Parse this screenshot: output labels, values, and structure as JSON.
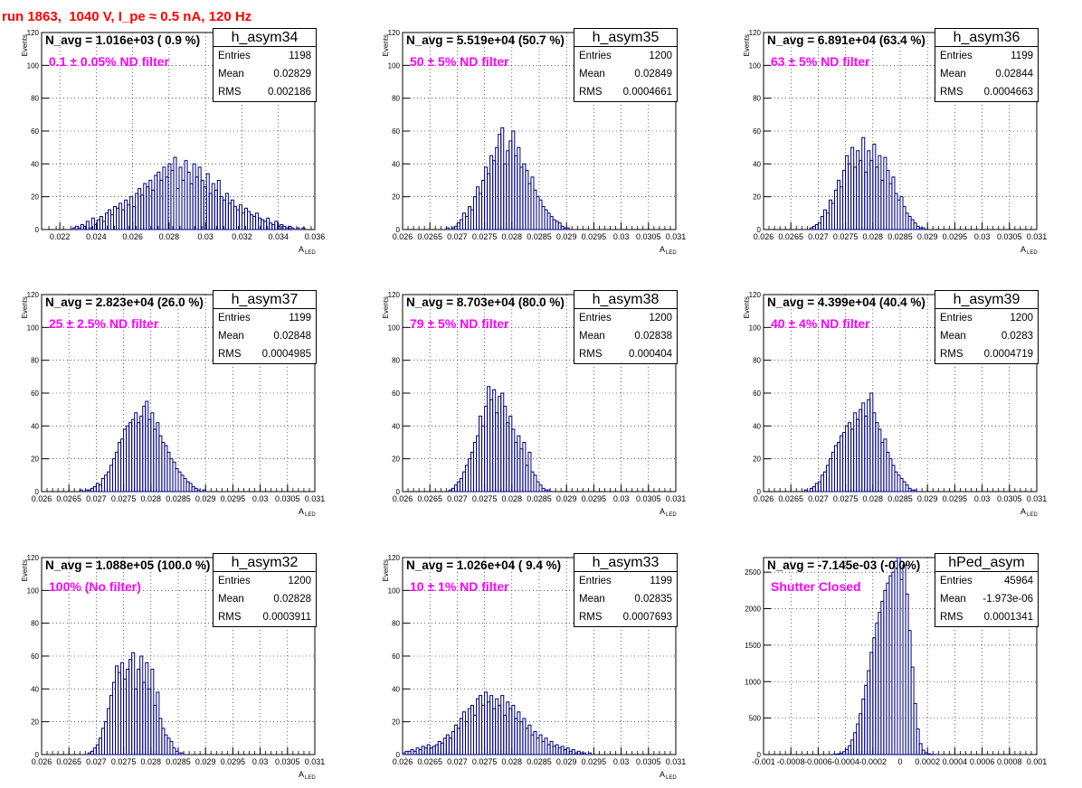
{
  "page_title": "run 1863,  1040 V, I_pe ≈ 0.5 nA, 120 Hz",
  "chart_data": [
    {
      "type": "bar",
      "hist_name": "h_asym34",
      "annotation": "N_avg = 1.016e+03 ( 0.9 %)",
      "filter_label": "0.1 ± 0.05% ND filter",
      "stats": {
        "entries": "1198",
        "mean": "0.02829",
        "rms": "0.002186"
      },
      "xlabel": "A",
      "xlabel_sub": "LED",
      "ylabel": "Events",
      "xlim": [
        0.021,
        0.036
      ],
      "ylim": [
        0,
        120
      ],
      "x_ticks": [
        "0.022",
        "0.024",
        "0.026",
        "0.028",
        "0.03",
        "0.032",
        "0.034",
        "0.036"
      ],
      "y_ticks": [
        "20",
        "40",
        "60",
        "80",
        "100",
        "120"
      ],
      "bin_start": 0.0215,
      "bin_width": 0.00015,
      "values": [
        0,
        0,
        0,
        0,
        0,
        0,
        0,
        0,
        1,
        2,
        1,
        3,
        2,
        5,
        1,
        7,
        3,
        6,
        8,
        5,
        10,
        12,
        9,
        14,
        13,
        16,
        12,
        18,
        15,
        20,
        14,
        22,
        25,
        21,
        28,
        26,
        30,
        24,
        33,
        35,
        30,
        38,
        32,
        40,
        36,
        44,
        25,
        38,
        30,
        42,
        35,
        28,
        40,
        32,
        38,
        30,
        26,
        34,
        22,
        28,
        24,
        30,
        20,
        18,
        22,
        16,
        18,
        14,
        12,
        15,
        10,
        13,
        11,
        9,
        8,
        10,
        7,
        6,
        5,
        7,
        4,
        3,
        5,
        2,
        3,
        2,
        1,
        2,
        1,
        0,
        1,
        0,
        1,
        0,
        0,
        0,
        0,
        0,
        0,
        0
      ]
    },
    {
      "type": "bar",
      "hist_name": "h_asym35",
      "annotation": "N_avg = 5.519e+04 (50.7 %)",
      "filter_label": "50 ± 5% ND filter",
      "stats": {
        "entries": "1200",
        "mean": "0.02849",
        "rms": "0.0004661"
      },
      "xlabel": "A",
      "xlabel_sub": "LED",
      "ylabel": "Events",
      "xlim": [
        0.026,
        0.031
      ],
      "ylim": [
        0,
        120
      ],
      "x_ticks": [
        "0.026",
        "0.0265",
        "0.027",
        "0.0275",
        "0.028",
        "0.0285",
        "0.029",
        "0.0295",
        "0.03",
        "0.0305",
        "0.031"
      ],
      "y_ticks": [
        "20",
        "40",
        "60",
        "80",
        "100",
        "120"
      ],
      "bin_start": 0.026,
      "bin_width": 5e-05,
      "values": [
        0,
        0,
        0,
        0,
        0,
        0,
        0,
        0,
        0,
        0,
        0,
        0,
        0,
        0,
        0,
        0,
        1,
        0,
        1,
        2,
        4,
        6,
        10,
        8,
        14,
        12,
        20,
        26,
        22,
        30,
        38,
        34,
        45,
        42,
        50,
        58,
        62,
        40,
        48,
        54,
        60,
        45,
        50,
        38,
        40,
        36,
        28,
        32,
        24,
        20,
        18,
        14,
        12,
        10,
        8,
        6,
        5,
        4,
        2,
        1,
        1,
        0,
        0,
        0,
        0,
        0,
        0,
        0,
        0,
        0,
        0,
        0,
        0,
        0,
        0,
        0,
        0,
        0,
        0,
        0,
        0,
        0,
        0,
        0,
        0,
        0,
        0,
        0,
        0,
        0,
        0,
        0,
        0,
        0,
        0,
        0,
        0,
        0,
        0,
        0
      ]
    },
    {
      "type": "bar",
      "hist_name": "h_asym36",
      "annotation": "N_avg = 6.891e+04 (63.4 %)",
      "filter_label": "63 ± 5% ND filter",
      "stats": {
        "entries": "1199",
        "mean": "0.02844",
        "rms": "0.0004663"
      },
      "xlabel": "A",
      "xlabel_sub": "LED",
      "ylabel": "Events",
      "xlim": [
        0.026,
        0.031
      ],
      "ylim": [
        0,
        120
      ],
      "x_ticks": [
        "0.026",
        "0.0265",
        "0.027",
        "0.0275",
        "0.028",
        "0.0285",
        "0.029",
        "0.0295",
        "0.03",
        "0.0305",
        "0.031"
      ],
      "y_ticks": [
        "20",
        "40",
        "60",
        "80",
        "100",
        "120"
      ],
      "bin_start": 0.026,
      "bin_width": 5e-05,
      "values": [
        0,
        0,
        0,
        0,
        0,
        0,
        0,
        0,
        0,
        0,
        0,
        0,
        0,
        0,
        0,
        0,
        0,
        1,
        2,
        3,
        4,
        8,
        12,
        10,
        18,
        16,
        24,
        30,
        26,
        36,
        45,
        40,
        50,
        38,
        48,
        42,
        56,
        35,
        48,
        42,
        52,
        38,
        45,
        30,
        44,
        36,
        28,
        32,
        22,
        18,
        20,
        14,
        10,
        8,
        6,
        4,
        2,
        1,
        1,
        0,
        0,
        0,
        0,
        0,
        0,
        0,
        0,
        0,
        0,
        0,
        0,
        0,
        0,
        0,
        0,
        0,
        0,
        0,
        0,
        0,
        0,
        0,
        0,
        0,
        0,
        0,
        0,
        0,
        0,
        0,
        0,
        0,
        0,
        0,
        0,
        0,
        0,
        0,
        0,
        0
      ]
    },
    {
      "type": "bar",
      "hist_name": "h_asym37",
      "annotation": "N_avg = 2.823e+04 (26.0 %)",
      "filter_label": "25 ± 2.5% ND filter",
      "stats": {
        "entries": "1199",
        "mean": "0.02848",
        "rms": "0.0004985"
      },
      "xlabel": "A",
      "xlabel_sub": "LED",
      "ylabel": "Events",
      "xlim": [
        0.026,
        0.031
      ],
      "ylim": [
        0,
        120
      ],
      "x_ticks": [
        "0.026",
        "0.0265",
        "0.027",
        "0.0275",
        "0.028",
        "0.0285",
        "0.029",
        "0.0295",
        "0.03",
        "0.0305",
        "0.031"
      ],
      "y_ticks": [
        "20",
        "40",
        "60",
        "80",
        "100",
        "120"
      ],
      "bin_start": 0.026,
      "bin_width": 5e-05,
      "values": [
        0,
        0,
        0,
        0,
        0,
        0,
        0,
        0,
        0,
        0,
        0,
        0,
        0,
        0,
        1,
        0,
        1,
        1,
        2,
        3,
        5,
        4,
        8,
        10,
        12,
        16,
        20,
        24,
        30,
        32,
        38,
        40,
        42,
        44,
        48,
        42,
        46,
        52,
        55,
        44,
        48,
        38,
        42,
        34,
        30,
        28,
        24,
        20,
        18,
        14,
        12,
        10,
        8,
        6,
        5,
        3,
        2,
        1,
        0,
        1,
        0,
        0,
        0,
        0,
        0,
        0,
        0,
        0,
        0,
        0,
        0,
        0,
        0,
        0,
        0,
        0,
        0,
        0,
        0,
        0,
        0,
        0,
        0,
        0,
        0,
        0,
        0,
        0,
        0,
        0,
        0,
        0,
        0,
        0,
        0,
        0,
        0,
        0,
        0,
        0
      ]
    },
    {
      "type": "bar",
      "hist_name": "h_asym38",
      "annotation": "N_avg = 8.703e+04 (80.0 %)",
      "filter_label": "79 ± 5% ND filter",
      "stats": {
        "entries": "1200",
        "mean": "0.02838",
        "rms": "0.000404"
      },
      "xlabel": "A",
      "xlabel_sub": "LED",
      "ylabel": "Events",
      "xlim": [
        0.026,
        0.031
      ],
      "ylim": [
        0,
        120
      ],
      "x_ticks": [
        "0.026",
        "0.0265",
        "0.027",
        "0.0275",
        "0.028",
        "0.0285",
        "0.029",
        "0.0295",
        "0.03",
        "0.0305",
        "0.031"
      ],
      "y_ticks": [
        "20",
        "40",
        "60",
        "80",
        "100",
        "120"
      ],
      "bin_start": 0.026,
      "bin_width": 5e-05,
      "values": [
        0,
        0,
        0,
        0,
        0,
        0,
        0,
        0,
        0,
        0,
        0,
        0,
        0,
        0,
        0,
        0,
        0,
        1,
        2,
        4,
        6,
        8,
        12,
        16,
        20,
        24,
        30,
        34,
        46,
        40,
        52,
        64,
        56,
        62,
        48,
        58,
        60,
        52,
        42,
        46,
        38,
        30,
        34,
        26,
        30,
        16,
        24,
        12,
        10,
        6,
        4,
        2,
        1,
        1,
        0,
        0,
        0,
        0,
        0,
        0,
        0,
        0,
        0,
        0,
        0,
        0,
        0,
        0,
        0,
        0,
        0,
        0,
        0,
        0,
        0,
        0,
        0,
        0,
        0,
        0,
        0,
        0,
        0,
        0,
        0,
        0,
        0,
        0,
        0,
        0,
        0,
        0,
        0,
        0,
        0,
        0,
        0,
        0,
        0,
        0
      ]
    },
    {
      "type": "bar",
      "hist_name": "h_asym39",
      "annotation": "N_avg = 4.399e+04 (40.4 %)",
      "filter_label": "40 ± 4% ND filter",
      "stats": {
        "entries": "1200",
        "mean": "0.0283",
        "rms": "0.0004719"
      },
      "xlabel": "A",
      "xlabel_sub": "LED",
      "ylabel": "Events",
      "xlim": [
        0.026,
        0.031
      ],
      "ylim": [
        0,
        120
      ],
      "x_ticks": [
        "0.026",
        "0.0265",
        "0.027",
        "0.0275",
        "0.028",
        "0.0285",
        "0.029",
        "0.0295",
        "0.03",
        "0.0305",
        "0.031"
      ],
      "y_ticks": [
        "20",
        "40",
        "60",
        "80",
        "100",
        "120"
      ],
      "bin_start": 0.026,
      "bin_width": 5e-05,
      "values": [
        0,
        0,
        0,
        0,
        0,
        0,
        0,
        0,
        0,
        0,
        0,
        0,
        0,
        0,
        0,
        1,
        0,
        2,
        3,
        5,
        6,
        10,
        12,
        16,
        20,
        24,
        28,
        30,
        34,
        36,
        40,
        42,
        38,
        48,
        44,
        50,
        54,
        46,
        56,
        60,
        48,
        42,
        38,
        30,
        32,
        24,
        20,
        16,
        12,
        10,
        8,
        6,
        4,
        2,
        1,
        1,
        0,
        0,
        0,
        0,
        0,
        0,
        0,
        0,
        0,
        0,
        0,
        0,
        0,
        0,
        0,
        0,
        0,
        0,
        0,
        0,
        0,
        0,
        0,
        0,
        0,
        0,
        0,
        0,
        0,
        0,
        0,
        0,
        0,
        0,
        0,
        0,
        0,
        0,
        0,
        0,
        0,
        0,
        0,
        0
      ]
    },
    {
      "type": "bar",
      "hist_name": "h_asym32",
      "annotation": "N_avg = 1.088e+05 (100.0 %)",
      "filter_label": "100% (No filter)",
      "stats": {
        "entries": "1200",
        "mean": "0.02828",
        "rms": "0.0003911"
      },
      "xlabel": "A",
      "xlabel_sub": "LED",
      "ylabel": "Events",
      "xlim": [
        0.026,
        0.031
      ],
      "ylim": [
        0,
        120
      ],
      "x_ticks": [
        "0.026",
        "0.0265",
        "0.027",
        "0.0275",
        "0.028",
        "0.0285",
        "0.029",
        "0.0295",
        "0.03",
        "0.0305",
        "0.031"
      ],
      "y_ticks": [
        "20",
        "40",
        "60",
        "80",
        "100",
        "120"
      ],
      "bin_start": 0.026,
      "bin_width": 5e-05,
      "values": [
        0,
        0,
        0,
        0,
        0,
        0,
        0,
        0,
        0,
        0,
        0,
        0,
        0,
        0,
        0,
        0,
        0,
        1,
        2,
        4,
        6,
        10,
        16,
        20,
        28,
        36,
        44,
        54,
        50,
        56,
        46,
        52,
        58,
        62,
        40,
        52,
        60,
        44,
        56,
        40,
        52,
        30,
        38,
        22,
        16,
        12,
        10,
        8,
        4,
        2,
        1,
        1,
        0,
        0,
        0,
        0,
        0,
        0,
        0,
        0,
        0,
        0,
        0,
        0,
        0,
        0,
        0,
        0,
        0,
        0,
        0,
        0,
        0,
        0,
        0,
        0,
        0,
        0,
        0,
        0,
        0,
        0,
        0,
        0,
        0,
        0,
        0,
        0,
        0,
        0,
        0,
        0,
        0,
        0,
        0,
        0,
        0,
        0,
        0,
        0
      ]
    },
    {
      "type": "bar",
      "hist_name": "h_asym33",
      "annotation": "N_avg = 1.026e+04 ( 9.4 %)",
      "filter_label": "10 ± 1% ND filter",
      "stats": {
        "entries": "1199",
        "mean": "0.02835",
        "rms": "0.0007693"
      },
      "xlabel": "A",
      "xlabel_sub": "LED",
      "ylabel": "Events",
      "xlim": [
        0.026,
        0.031
      ],
      "ylim": [
        0,
        120
      ],
      "x_ticks": [
        "0.026",
        "0.0265",
        "0.027",
        "0.0275",
        "0.028",
        "0.0285",
        "0.029",
        "0.0295",
        "0.03",
        "0.0305",
        "0.031"
      ],
      "y_ticks": [
        "20",
        "40",
        "60",
        "80",
        "100",
        "120"
      ],
      "bin_start": 0.026,
      "bin_width": 5e-05,
      "values": [
        1,
        2,
        2,
        3,
        2,
        4,
        3,
        5,
        4,
        6,
        4,
        5,
        6,
        8,
        7,
        10,
        12,
        10,
        14,
        18,
        16,
        22,
        26,
        20,
        28,
        30,
        24,
        34,
        36,
        30,
        38,
        32,
        36,
        28,
        34,
        30,
        36,
        24,
        32,
        28,
        30,
        22,
        26,
        20,
        22,
        16,
        18,
        12,
        14,
        10,
        12,
        8,
        10,
        6,
        8,
        5,
        6,
        4,
        5,
        3,
        4,
        2,
        3,
        1,
        2,
        1,
        1,
        0,
        1,
        0,
        0,
        0,
        0,
        0,
        0,
        0,
        0,
        0,
        0,
        0,
        0,
        0,
        0,
        0,
        0,
        0,
        0,
        0,
        0,
        0,
        0,
        0,
        0,
        0,
        0,
        0,
        0,
        0,
        0,
        0
      ]
    },
    {
      "type": "bar",
      "hist_name": "hPed_asym",
      "annotation": "N_avg = -7.145e-03 (-0.0%)",
      "filter_label": "Shutter Closed",
      "stats": {
        "entries": "45964",
        "mean": "-1.973e-06",
        "rms": "0.0001341"
      },
      "xlabel": "",
      "xlabel_sub": "",
      "ylabel": "",
      "xlim": [
        -0.001,
        0.001
      ],
      "ylim": [
        0,
        2700
      ],
      "x_ticks": [
        "-0.001",
        "-0.0008",
        "-0.0006",
        "-0.0004",
        "-0.0002",
        "0",
        "0.0002",
        "0.0004",
        "0.0006",
        "0.0008",
        "0.001"
      ],
      "y_ticks": [
        "500",
        "1000",
        "1500",
        "2000",
        "2500"
      ],
      "bin_start": -0.001,
      "bin_width": 2e-05,
      "values": [
        0,
        0,
        0,
        0,
        0,
        0,
        0,
        0,
        0,
        0,
        0,
        0,
        0,
        0,
        0,
        0,
        0,
        0,
        0,
        0,
        0,
        0,
        0,
        0,
        0,
        2,
        5,
        10,
        20,
        40,
        70,
        120,
        200,
        300,
        420,
        560,
        760,
        950,
        1150,
        1400,
        1600,
        1800,
        1950,
        2100,
        2250,
        2350,
        2450,
        2500,
        2650,
        2700,
        2400,
        2600,
        2200,
        1700,
        1200,
        700,
        350,
        150,
        60,
        25,
        10,
        4,
        2,
        1,
        0,
        0,
        0,
        0,
        0,
        0,
        0,
        0,
        0,
        0,
        0,
        0,
        0,
        0,
        0,
        0,
        0,
        0,
        0,
        0,
        0,
        0,
        0,
        0,
        0,
        0,
        0,
        0,
        0,
        0,
        0,
        0,
        0,
        0,
        0,
        0
      ]
    }
  ]
}
